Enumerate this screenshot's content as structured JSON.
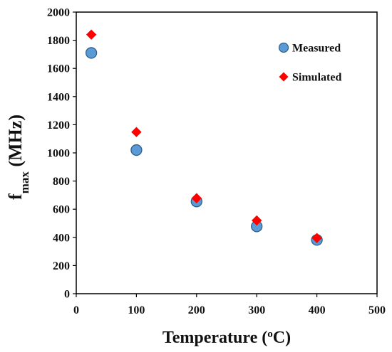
{
  "chart_data": {
    "type": "scatter",
    "title": "",
    "xlabel": {
      "main": "Temperature (",
      "sup": "o",
      "tail": "C)"
    },
    "ylabel": {
      "main": "f",
      "sub": "max",
      "tail": " (MHz)"
    },
    "xlim": [
      0,
      500
    ],
    "ylim": [
      0,
      2000
    ],
    "x_ticks": [
      "0",
      "100",
      "200",
      "300",
      "400",
      "500"
    ],
    "y_ticks": [
      "0",
      "200",
      "400",
      "600",
      "800",
      "1000",
      "1200",
      "1400",
      "1600",
      "1800",
      "2000"
    ],
    "grid": false,
    "legend_position": "top-right",
    "series": [
      {
        "name": "Measured",
        "marker": "circle",
        "color": "#5B9BD5",
        "edge_color": "#2E5F8A",
        "x": [
          25,
          100,
          200,
          300,
          400
        ],
        "y": [
          1710,
          1020,
          655,
          478,
          382
        ]
      },
      {
        "name": "Simulated",
        "marker": "diamond",
        "color": "#FF0000",
        "edge_color": "#FF0000",
        "x": [
          25,
          100,
          200,
          300,
          400
        ],
        "y": [
          1840,
          1148,
          678,
          520,
          395
        ]
      }
    ]
  }
}
